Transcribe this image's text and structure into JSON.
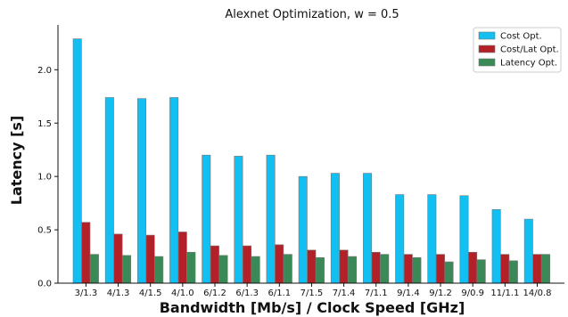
{
  "chart_data": {
    "type": "bar",
    "title": "Alexnet Optimization, w = 0.5",
    "xlabel": "Bandwidth [Mb/s] / Clock Speed [GHz]",
    "ylabel": "Latency [s]",
    "ylim": [
      0,
      2.42
    ],
    "yticks": [
      "0.0",
      "0.5",
      "1.0",
      "1.5",
      "2.0"
    ],
    "grid": false,
    "legend_position": "top-right",
    "categories": [
      "3/1.3",
      "4/1.3",
      "4/1.5",
      "4/1.0",
      "6/1.2",
      "6/1.3",
      "6/1.1",
      "7/1.5",
      "7/1.4",
      "7/1.1",
      "9/1.4",
      "9/1.2",
      "9/0.9",
      "11/1.1",
      "14/0.8"
    ],
    "series": [
      {
        "name": "Cost Opt.",
        "color": "#12bff2",
        "values": [
          2.29,
          1.74,
          1.73,
          1.74,
          1.2,
          1.19,
          1.2,
          1.0,
          1.03,
          1.03,
          0.83,
          0.83,
          0.82,
          0.69,
          0.6
        ]
      },
      {
        "name": "Cost/Lat Opt.",
        "color": "#b32128",
        "values": [
          0.57,
          0.46,
          0.45,
          0.48,
          0.35,
          0.35,
          0.36,
          0.31,
          0.31,
          0.29,
          0.27,
          0.27,
          0.29,
          0.27,
          0.27
        ]
      },
      {
        "name": "Latency Opt.",
        "color": "#3a8a57",
        "values": [
          0.27,
          0.26,
          0.25,
          0.29,
          0.26,
          0.25,
          0.27,
          0.24,
          0.25,
          0.27,
          0.24,
          0.2,
          0.22,
          0.21,
          0.27
        ]
      }
    ]
  }
}
